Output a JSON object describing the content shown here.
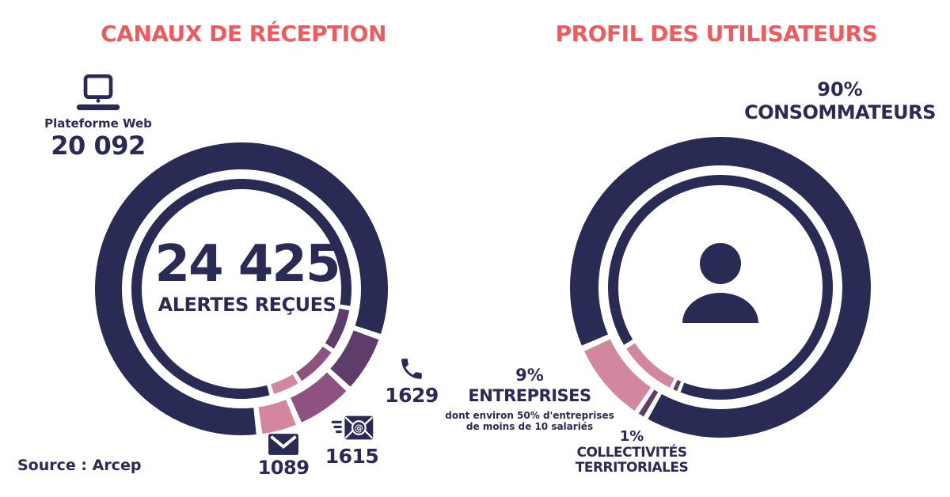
{
  "colors": {
    "accent": "#EF5A5E",
    "navy": "#292B55",
    "dark_purple": "#5E3D6B",
    "mauve": "#8E5180",
    "pink": "#D2879E",
    "background": "#FFFFFF"
  },
  "source_note": "Source : Arcep",
  "chart_data": [
    {
      "type": "donut",
      "title": "CANAUX DE RÉCEPTION",
      "center_value": "24 425",
      "center_label": "ALERTES REÇUES",
      "total": 24425,
      "rotation_deg": 173,
      "inner_ring_offset_deg": -9,
      "legend_position": "around",
      "segments": [
        {
          "id": "plateforme-web",
          "icon": "laptop-icon",
          "label": "Plateforme Web",
          "value": 20092,
          "display_value": "20 092",
          "color": "#292B55"
        },
        {
          "id": "telephone",
          "icon": "phone-icon",
          "value": 1629,
          "display_value": "1629",
          "color": "#5E3D6B"
        },
        {
          "id": "email",
          "icon": "email-at-icon",
          "value": 1615,
          "display_value": "1615",
          "color": "#8E5180"
        },
        {
          "id": "courrier",
          "icon": "envelope-icon",
          "value": 1089,
          "display_value": "1089",
          "color": "#D2879E"
        }
      ]
    },
    {
      "type": "donut",
      "title": "PROFIL DES UTILISATEURS",
      "center_icon": "person-icon",
      "total": 100,
      "rotation_deg": 246,
      "inner_ring_offset_deg": -8,
      "legend_position": "around",
      "segments": [
        {
          "id": "consommateurs",
          "value": 90,
          "display_value": "90%",
          "label": "CONSOMMATEURS",
          "color": "#292B55"
        },
        {
          "id": "collectivites-territoriales",
          "value": 1,
          "display_value": "1%",
          "label": "COLLECTIVITÉS TERRITORIALES",
          "color": "#5E3D6B"
        },
        {
          "id": "entreprises",
          "value": 9,
          "display_value": "9%",
          "label": "ENTREPRISES",
          "sublabel": "dont environ 50% d'entreprises de moins de 10 salariés",
          "color": "#D2879E"
        }
      ]
    }
  ]
}
